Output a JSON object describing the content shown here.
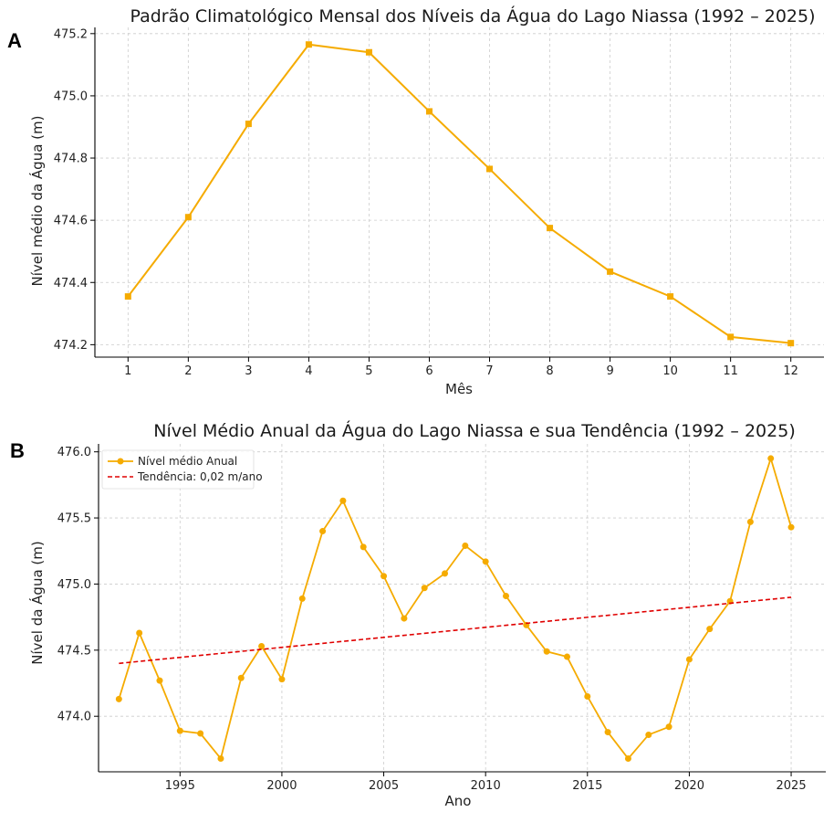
{
  "panels": {
    "a_letter": "A",
    "b_letter": "B"
  },
  "chart_data": [
    {
      "type": "line",
      "title": "Padrão Climatológico Mensal dos Níveis da Água do Lago Niassa (1992 – 2025)",
      "xlabel": "Mês",
      "ylabel": "Nível médio da Água (m)",
      "x": [
        1,
        2,
        3,
        4,
        5,
        6,
        7,
        8,
        9,
        10,
        11,
        12
      ],
      "y": [
        474.355,
        474.61,
        474.91,
        475.165,
        475.14,
        474.95,
        474.765,
        474.575,
        474.435,
        474.355,
        474.225,
        474.205
      ],
      "xlim": [
        0.45,
        12.55
      ],
      "ylim": [
        474.16,
        475.22
      ],
      "xticks": [
        1,
        2,
        3,
        4,
        5,
        6,
        7,
        8,
        9,
        10,
        11,
        12
      ],
      "xtick_labels": [
        "1",
        "2",
        "3",
        "4",
        "5",
        "6",
        "7",
        "8",
        "9",
        "10",
        "11",
        "12"
      ],
      "yticks": [
        474.2,
        474.4,
        474.6,
        474.8,
        475.0,
        475.2
      ],
      "ytick_labels": [
        "474.2",
        "474.4",
        "474.6",
        "474.8",
        "475.0",
        "475.2"
      ],
      "marker": "square",
      "color": "#F5AB00",
      "grid": true
    },
    {
      "type": "line",
      "title": "Nível Médio Anual da Água do Lago Niassa e sua Tendência (1992 – 2025)",
      "xlabel": "Ano",
      "ylabel": "Nível da Água (m)",
      "xlim": [
        1991.0,
        2026.7
      ],
      "ylim": [
        473.58,
        476.06
      ],
      "xticks": [
        1995,
        2000,
        2005,
        2010,
        2015,
        2020,
        2025
      ],
      "xtick_labels": [
        "1995",
        "2000",
        "2005",
        "2010",
        "2015",
        "2020",
        "2025"
      ],
      "yticks": [
        474.0,
        474.5,
        475.0,
        475.5,
        476.0
      ],
      "ytick_labels": [
        "474.0",
        "474.5",
        "475.0",
        "475.5",
        "476.0"
      ],
      "grid": true,
      "legend_position": "top-left",
      "series": [
        {
          "name": "Nível médio Anual",
          "color": "#F5AB00",
          "marker": "circle",
          "x": [
            1992,
            1993,
            1994,
            1995,
            1996,
            1997,
            1998,
            1999,
            2000,
            2001,
            2002,
            2003,
            2004,
            2005,
            2006,
            2007,
            2008,
            2009,
            2010,
            2011,
            2012,
            2013,
            2014,
            2015,
            2016,
            2017,
            2018,
            2019,
            2020,
            2021,
            2022,
            2023,
            2024,
            2025
          ],
          "y": [
            474.13,
            474.63,
            474.27,
            473.89,
            473.87,
            473.68,
            474.29,
            474.53,
            474.28,
            474.89,
            475.4,
            475.63,
            475.28,
            475.06,
            474.74,
            474.97,
            475.08,
            475.29,
            475.17,
            474.91,
            474.69,
            474.49,
            474.45,
            474.15,
            473.88,
            473.68,
            473.86,
            473.92,
            474.43,
            474.66,
            474.87,
            475.47,
            475.95,
            475.43
          ]
        },
        {
          "name": "Tendência: 0,02 m/ano",
          "color": "#E00000",
          "style": "dashed",
          "x": [
            1992,
            2025
          ],
          "y": [
            474.4,
            474.9
          ]
        }
      ]
    }
  ]
}
